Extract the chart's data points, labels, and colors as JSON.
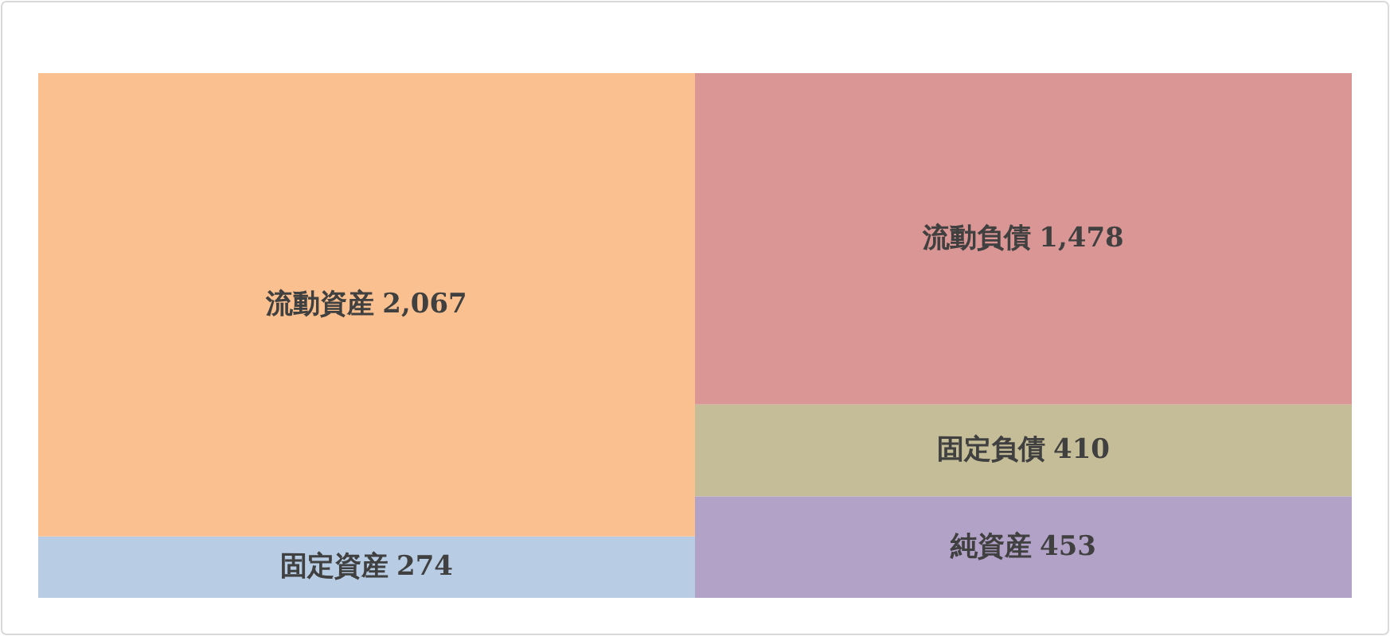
{
  "chart_data": {
    "type": "bar",
    "stacked": true,
    "categories": [
      null,
      null
    ],
    "series": [
      {
        "name": "固定資産",
        "color": "#b8cce4",
        "values": [
          274,
          null
        ],
        "value_labels": [
          "274",
          null
        ]
      },
      {
        "name": "流動資産",
        "color": "#fac090",
        "values": [
          2067,
          null
        ],
        "value_labels": [
          "2,067",
          null
        ]
      },
      {
        "name": "純資産",
        "color": "#b3a2c7",
        "values": [
          null,
          453
        ],
        "value_labels": [
          null,
          "453"
        ]
      },
      {
        "name": "固定負債",
        "color": "#c4bd97",
        "values": [
          null,
          410
        ],
        "value_labels": [
          null,
          "410"
        ]
      },
      {
        "name": "流動負債",
        "color": "#d99694",
        "values": [
          null,
          1478
        ],
        "value_labels": [
          null,
          "1,478"
        ]
      }
    ]
  }
}
